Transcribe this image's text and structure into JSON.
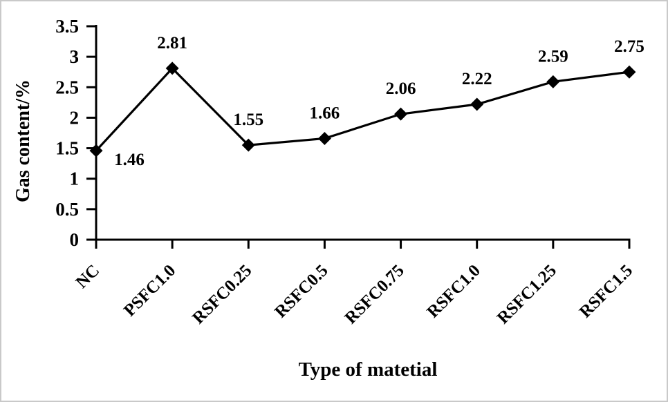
{
  "chart_data": {
    "type": "line",
    "title": "",
    "xlabel": "Type of matetial",
    "ylabel": "Gas content/%",
    "categories": [
      "NC",
      "PSFC1.0",
      "RSFC0.25",
      "RSFC0.5",
      "RSFC0.75",
      "RSFC1.0",
      "RSFC1.25",
      "RSFC1.5"
    ],
    "series": [
      {
        "name": "Gas content",
        "values": [
          1.46,
          2.81,
          1.55,
          1.66,
          2.06,
          2.22,
          2.59,
          2.75
        ]
      }
    ],
    "data_labels": [
      "1.46",
      "2.81",
      "1.55",
      "1.66",
      "2.06",
      "2.22",
      "2.59",
      "2.75"
    ],
    "ylim": [
      0,
      3.5
    ],
    "yticks": [
      "0",
      "0.5",
      "1",
      "1.5",
      "2",
      "2.5",
      "3",
      "3.5"
    ],
    "grid": false,
    "legend_position": "none",
    "marker": "diamond",
    "line_color": "#000000",
    "text_color": "#000000",
    "background_color": "#ffffff"
  }
}
